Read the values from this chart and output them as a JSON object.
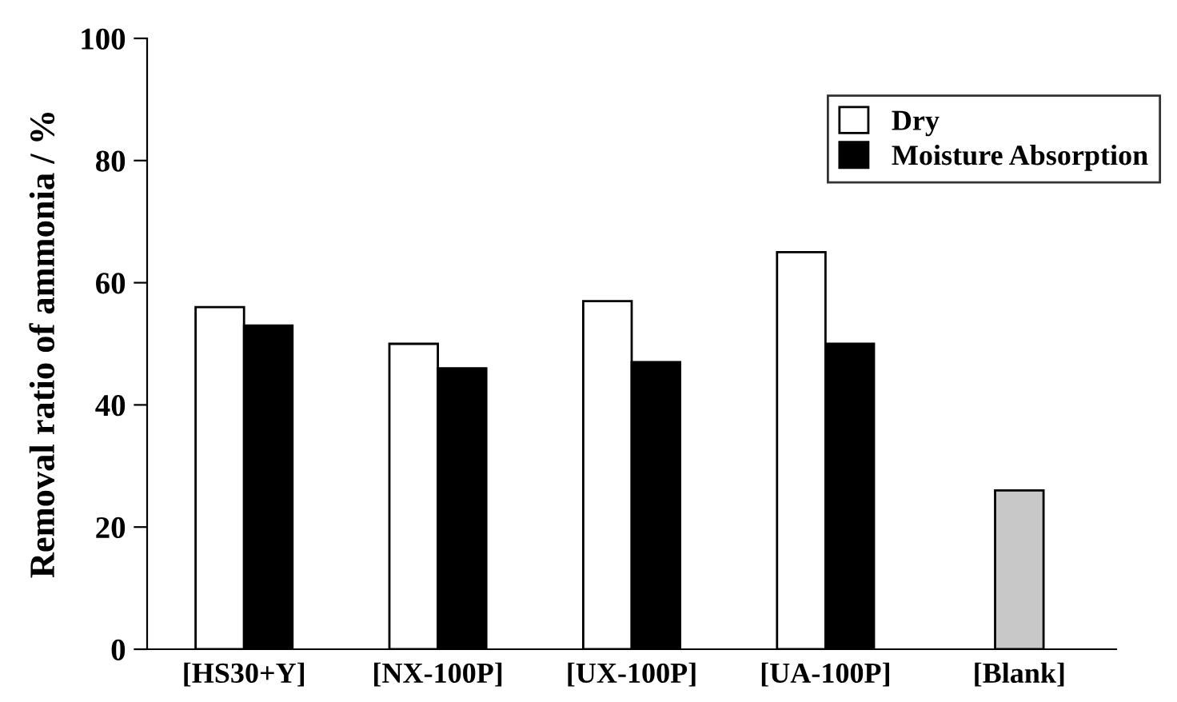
{
  "chart_data": {
    "type": "bar",
    "ylabel": "Removal ratio of ammonia / %",
    "categories": [
      "[HS30+Y]",
      "[NX-100P]",
      "[UX-100P]",
      "[UA-100P]",
      "[Blank]"
    ],
    "series": [
      {
        "name": "Dry",
        "color": "#ffffff",
        "values": [
          56,
          50,
          57,
          65,
          null
        ]
      },
      {
        "name": "Moisture Absorption",
        "color": "#000000",
        "values": [
          53,
          46,
          47,
          50,
          null
        ]
      },
      {
        "color": "#c8c8c8",
        "values": [
          null,
          null,
          null,
          null,
          26
        ]
      }
    ],
    "ylim": [
      0,
      100
    ],
    "yticks": [
      0,
      20,
      40,
      60,
      80,
      100
    ],
    "grid": false,
    "legend": "top right"
  }
}
